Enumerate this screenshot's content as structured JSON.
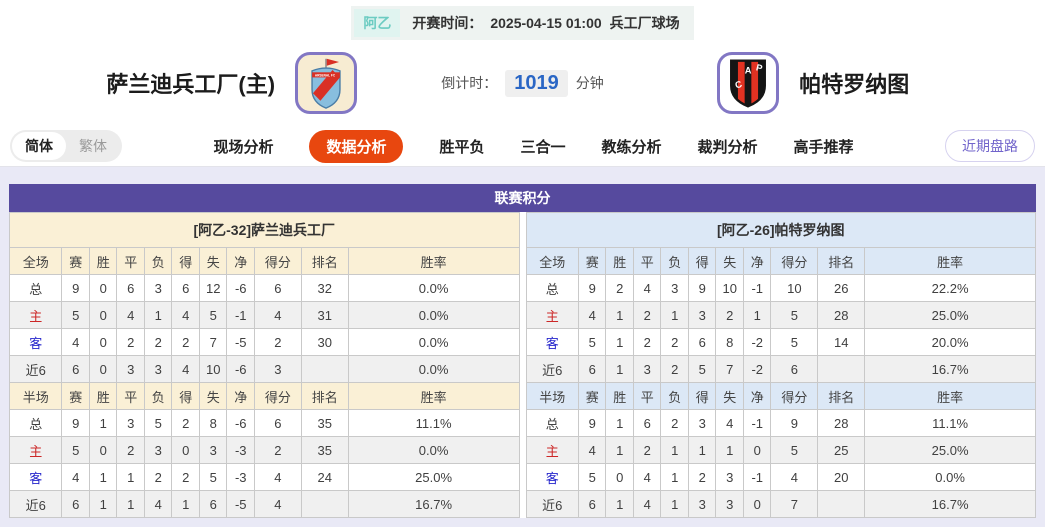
{
  "top_bar": {
    "league_badge": "阿乙",
    "kickoff_label": "开赛时间：",
    "kickoff_time": "2025-04-15 01:00",
    "venue": "兵工厂球场"
  },
  "header": {
    "home_team_name": "萨兰迪兵工厂(主)",
    "away_team_name": "帕特罗纳图",
    "countdown_label": "倒计时：",
    "countdown_value": "1019",
    "countdown_unit": "分钟"
  },
  "nav": {
    "lang_simplified": "简体",
    "lang_traditional": "繁体",
    "tabs": [
      {
        "label": "现场分析",
        "active": false
      },
      {
        "label": "数据分析",
        "active": true
      },
      {
        "label": "胜平负",
        "active": false
      },
      {
        "label": "三合一",
        "active": false
      },
      {
        "label": "教练分析",
        "active": false
      },
      {
        "label": "裁判分析",
        "active": false
      },
      {
        "label": "高手推荐",
        "active": false
      }
    ],
    "recent_trends_button": "近期盘路"
  },
  "league_table": {
    "title": "联赛积分",
    "home": {
      "header": "[阿乙-32]萨兰迪兵工厂",
      "full_columns": [
        "全场",
        "赛",
        "胜",
        "平",
        "负",
        "得",
        "失",
        "净",
        "得分",
        "排名",
        "胜率"
      ],
      "full_rows": [
        {
          "label": "总",
          "cells": [
            "9",
            "0",
            "6",
            "3",
            "6",
            "12",
            "-6",
            "6",
            "32",
            "0.0%"
          ]
        },
        {
          "label": "主",
          "cells": [
            "5",
            "0",
            "4",
            "1",
            "4",
            "5",
            "-1",
            "4",
            "31",
            "0.0%"
          ]
        },
        {
          "label": "客",
          "cells": [
            "4",
            "0",
            "2",
            "2",
            "2",
            "7",
            "-5",
            "2",
            "30",
            "0.0%"
          ]
        },
        {
          "label": "近6",
          "cells": [
            "6",
            "0",
            "3",
            "3",
            "4",
            "10",
            "-6",
            "3",
            "",
            "0.0%"
          ]
        }
      ],
      "half_columns": [
        "半场",
        "赛",
        "胜",
        "平",
        "负",
        "得",
        "失",
        "净",
        "得分",
        "排名",
        "胜率"
      ],
      "half_rows": [
        {
          "label": "总",
          "cells": [
            "9",
            "1",
            "3",
            "5",
            "2",
            "8",
            "-6",
            "6",
            "35",
            "11.1%"
          ]
        },
        {
          "label": "主",
          "cells": [
            "5",
            "0",
            "2",
            "3",
            "0",
            "3",
            "-3",
            "2",
            "35",
            "0.0%"
          ]
        },
        {
          "label": "客",
          "cells": [
            "4",
            "1",
            "1",
            "2",
            "2",
            "5",
            "-3",
            "4",
            "24",
            "25.0%"
          ]
        },
        {
          "label": "近6",
          "cells": [
            "6",
            "1",
            "1",
            "4",
            "1",
            "6",
            "-5",
            "4",
            "",
            "16.7%"
          ]
        }
      ]
    },
    "away": {
      "header": "[阿乙-26]帕特罗纳图",
      "full_columns": [
        "全场",
        "赛",
        "胜",
        "平",
        "负",
        "得",
        "失",
        "净",
        "得分",
        "排名",
        "胜率"
      ],
      "full_rows": [
        {
          "label": "总",
          "cells": [
            "9",
            "2",
            "4",
            "3",
            "9",
            "10",
            "-1",
            "10",
            "26",
            "22.2%"
          ]
        },
        {
          "label": "主",
          "cells": [
            "4",
            "1",
            "2",
            "1",
            "3",
            "2",
            "1",
            "5",
            "28",
            "25.0%"
          ]
        },
        {
          "label": "客",
          "cells": [
            "5",
            "1",
            "2",
            "2",
            "6",
            "8",
            "-2",
            "5",
            "14",
            "20.0%"
          ]
        },
        {
          "label": "近6",
          "cells": [
            "6",
            "1",
            "3",
            "2",
            "5",
            "7",
            "-2",
            "6",
            "",
            "16.7%"
          ]
        }
      ],
      "half_columns": [
        "半场",
        "赛",
        "胜",
        "平",
        "负",
        "得",
        "失",
        "净",
        "得分",
        "排名",
        "胜率"
      ],
      "half_rows": [
        {
          "label": "总",
          "cells": [
            "9",
            "1",
            "6",
            "2",
            "3",
            "4",
            "-1",
            "9",
            "28",
            "11.1%"
          ]
        },
        {
          "label": "主",
          "cells": [
            "4",
            "1",
            "2",
            "1",
            "1",
            "1",
            "0",
            "5",
            "25",
            "25.0%"
          ]
        },
        {
          "label": "客",
          "cells": [
            "5",
            "0",
            "4",
            "1",
            "2",
            "3",
            "-1",
            "4",
            "20",
            "0.0%"
          ]
        },
        {
          "label": "近6",
          "cells": [
            "6",
            "1",
            "4",
            "1",
            "3",
            "3",
            "0",
            "7",
            "",
            "16.7%"
          ]
        }
      ]
    }
  },
  "colors": {
    "purple_header": "#564a9e",
    "active_tab_orange": "#e8470f",
    "home_header_cream": "#faf0d6",
    "away_header_blue": "#dce8f6",
    "home_row_label_red": "#cc2727",
    "away_row_label_blue": "#2525cc",
    "league_badge_teal": "#6cccc2",
    "countdown_blue": "#2a66c5",
    "page_background": "#e9e9f6"
  }
}
